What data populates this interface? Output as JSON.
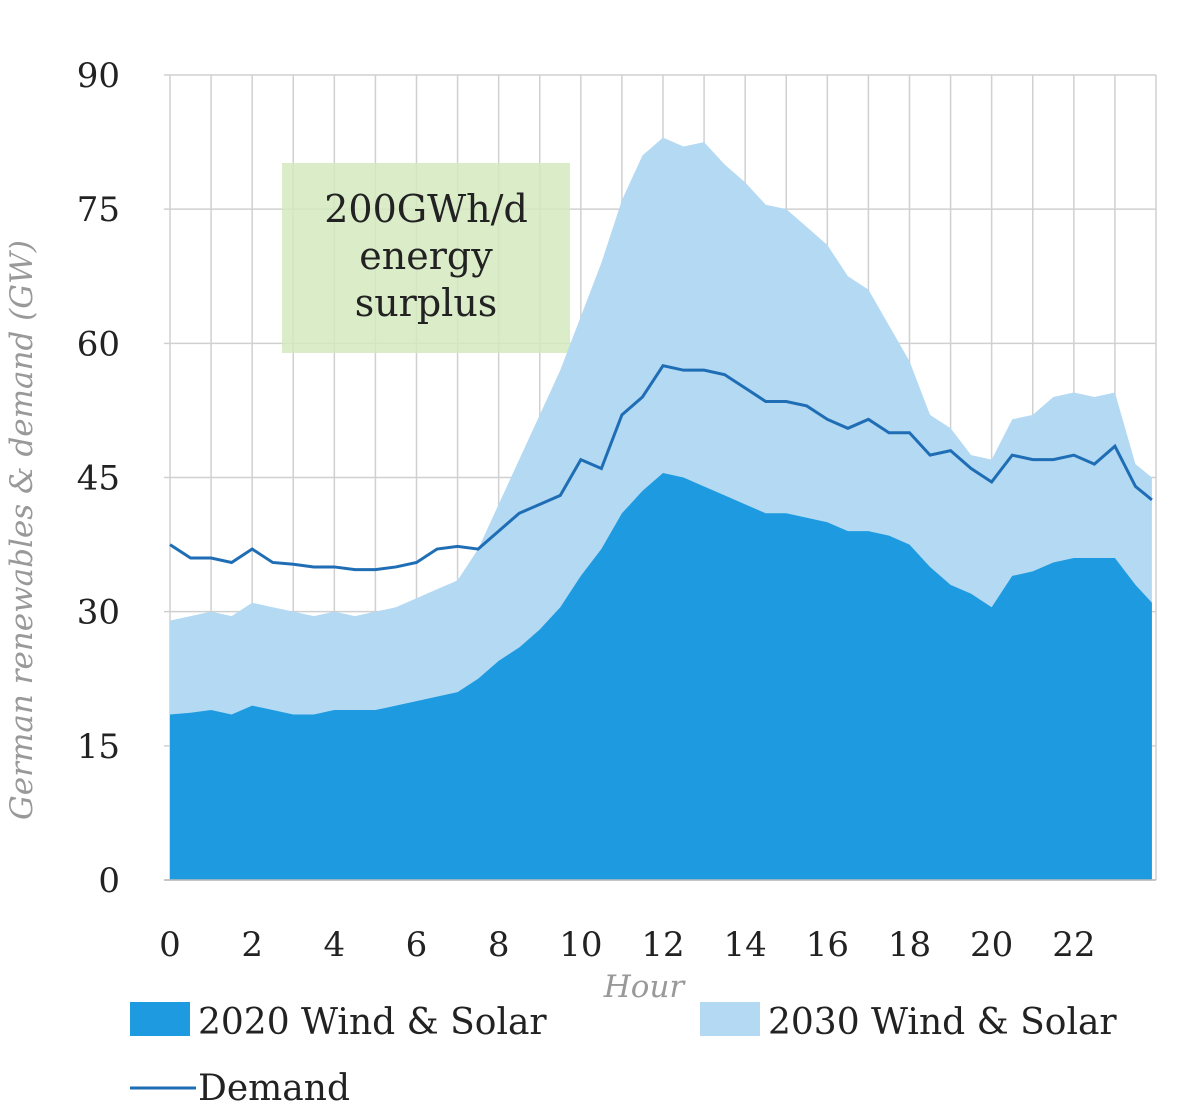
{
  "chart_data": {
    "type": "area",
    "x_label": "Hour",
    "y_label": "German renewables & demand (GW)",
    "annotation": [
      "200GWh/d",
      "energy",
      "surplus"
    ],
    "x": [
      0,
      0.5,
      1,
      1.5,
      2,
      2.5,
      3,
      3.5,
      4,
      4.5,
      5,
      5.5,
      6,
      6.5,
      7,
      7.5,
      8,
      8.5,
      9,
      9.5,
      10,
      10.5,
      11,
      11.5,
      12,
      12.5,
      13,
      13.5,
      14,
      14.5,
      15,
      15.5,
      16,
      16.5,
      17,
      17.5,
      18,
      18.5,
      19,
      19.5,
      20,
      20.5,
      21,
      21.5,
      22,
      22.5,
      23,
      23.5,
      23.9
    ],
    "series": [
      {
        "name": "2030 Wind & Solar",
        "color": "#b3d9f3",
        "kind": "area",
        "values": [
          29,
          29.5,
          30,
          29.5,
          31,
          30.5,
          30,
          29.5,
          30,
          29.5,
          30,
          30.5,
          31.5,
          32.5,
          33.5,
          37,
          42,
          47,
          52,
          57,
          63,
          69,
          76,
          81,
          83,
          82,
          82.5,
          80,
          78,
          75.5,
          75,
          73,
          71,
          67.5,
          66,
          62,
          58,
          52,
          50.5,
          47.5,
          47,
          51.5,
          52,
          54,
          54.5,
          54,
          54.5,
          46.5,
          45
        ]
      },
      {
        "name": "2020 Wind & Solar",
        "color": "#1e9be0",
        "kind": "area",
        "values": [
          18.5,
          18.7,
          19,
          18.5,
          19.5,
          19,
          18.5,
          18.5,
          19,
          19,
          19,
          19.5,
          20,
          20.5,
          21,
          22.5,
          24.5,
          26,
          28,
          30.5,
          34,
          37,
          41,
          43.5,
          45.5,
          45,
          44,
          43,
          42,
          41,
          41,
          40.5,
          40,
          39,
          39,
          38.5,
          37.5,
          35,
          33,
          32,
          30.5,
          34,
          34.5,
          35.5,
          36,
          36,
          36,
          33,
          31
        ]
      },
      {
        "name": "Demand",
        "color": "#1f6eb5",
        "kind": "line",
        "values": [
          37.5,
          36,
          36,
          35.5,
          37,
          35.5,
          35.3,
          35,
          35,
          34.7,
          34.7,
          35,
          35.5,
          37,
          37.3,
          37,
          39,
          41,
          42,
          43,
          47,
          46,
          52,
          54,
          57.5,
          57,
          57,
          56.5,
          55,
          53.5,
          53.5,
          53,
          51.5,
          50.5,
          51.5,
          50,
          50,
          47.5,
          48,
          46,
          44.5,
          47.5,
          47,
          47,
          47.5,
          46.5,
          48.5,
          44,
          42.5
        ]
      }
    ],
    "xlim": [
      0,
      24
    ],
    "xticks": [
      0,
      2,
      4,
      6,
      8,
      10,
      12,
      14,
      16,
      18,
      20,
      22
    ],
    "xminorticks": [
      1,
      3,
      5,
      7,
      9,
      11,
      13,
      15,
      17,
      19,
      21,
      23,
      24
    ],
    "ylim": [
      0,
      90
    ],
    "yticks": [
      0,
      15,
      30,
      45,
      60,
      75,
      90
    ],
    "grid": true
  }
}
